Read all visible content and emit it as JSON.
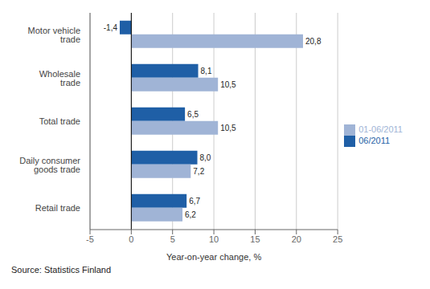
{
  "chart_data": {
    "type": "bar",
    "orientation": "horizontal",
    "categories": [
      "Motor vehicle\ntrade",
      "Wholesale\ntrade",
      "Total trade",
      "Daily consumer\ngoods trade",
      "Retail trade"
    ],
    "series": [
      {
        "name": "06/2011",
        "color": "#1f5fa6",
        "values": [
          -1.4,
          8.1,
          6.5,
          8.0,
          6.7
        ],
        "value_labels": [
          "-1,4",
          "8,1",
          "6,5",
          "8,0",
          "6,7"
        ]
      },
      {
        "name": "01-06/2011",
        "color": "#a0b4d6",
        "values": [
          20.8,
          10.5,
          10.5,
          7.2,
          6.2
        ],
        "value_labels": [
          "20,8",
          "10,5",
          "10,5",
          "7,2",
          "6,2"
        ]
      }
    ],
    "xlim": [
      -5,
      25
    ],
    "xticks": [
      -5,
      0,
      5,
      10,
      15,
      20,
      25
    ],
    "xlabel": "Year-on-year change, %",
    "grid": true,
    "legend": "right",
    "data_labels": true,
    "annotations": [
      "Source: Statistics Finland"
    ]
  }
}
